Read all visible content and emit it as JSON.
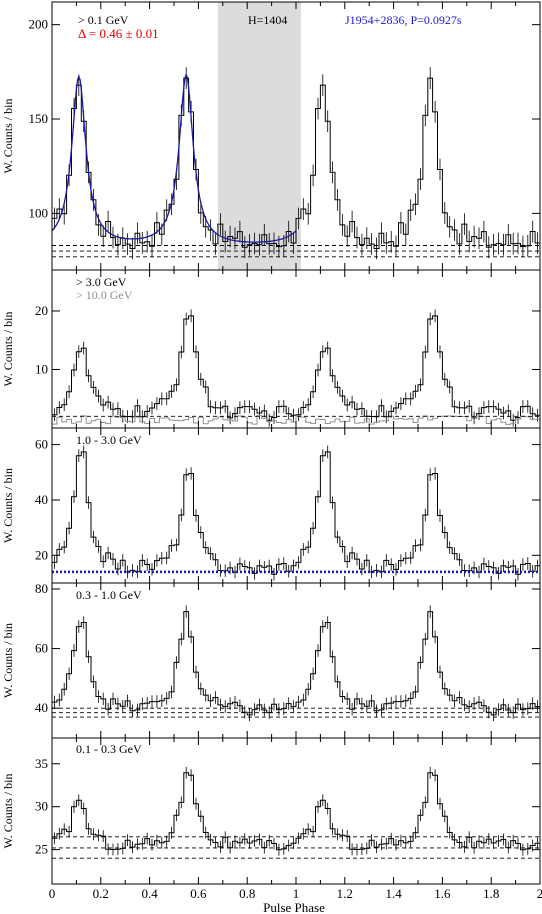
{
  "figure": {
    "xlabel": "Pulse Phase",
    "ylabel": "W. Counts / bin",
    "x_ticks": [
      "0",
      "0.2",
      "0.4",
      "0.6",
      "0.8",
      "1",
      "1.2",
      "1.4",
      "1.6",
      "1.8",
      "2"
    ],
    "x_range": [
      0,
      2
    ],
    "colors": {
      "histogram": "#000000",
      "fit": "#1a1aa0",
      "blue_text": "#1a1acc",
      "red_text": "#e00000",
      "offpulse": "#dcdcdc",
      "gray_text": "#909090"
    }
  },
  "annotations": {
    "energy_top": "> 0.1 GeV",
    "delta": "Δ = 0.46 ± 0.01",
    "htest": "H=1404",
    "pulsar": "J1954+2836, P=0.0927s",
    "energy_hi1": "> 3.0 GeV",
    "energy_hi2": "> 10.0 GeV",
    "energy_mid": "1.0 - 3.0 GeV",
    "energy_low": "0.3 - 1.0 GeV",
    "energy_lowest": "0.1 - 0.3 GeV"
  },
  "chart_data": [
    {
      "type": "line",
      "label": "> 0.1 GeV",
      "ylabel": "W. Counts / bin",
      "ylim": [
        70,
        212
      ],
      "y_ticks": [
        100,
        150,
        200
      ],
      "offpulse_region": [
        0.68,
        1.02
      ],
      "peaks": [
        {
          "phase": 0.11,
          "counts": 172
        },
        {
          "phase": 0.55,
          "counts": 173
        }
      ],
      "baseline_lines": [
        77,
        80,
        83
      ],
      "fit_curve": "double-peak Lorentzian over phase 0-1",
      "background_level": 82
    },
    {
      "type": "line",
      "label": "> 3.0 GeV",
      "ylabel": "W. Counts / bin",
      "ylim": [
        0,
        27
      ],
      "y_ticks": [
        10,
        20
      ],
      "peaks": [
        {
          "phase": 0.12,
          "counts": 14
        },
        {
          "phase": 0.56,
          "counts": 21
        }
      ],
      "baseline_lines": [
        2
      ],
      "secondary_series": "> 10.0 GeV"
    },
    {
      "type": "line",
      "label": "1.0 - 3.0 GeV",
      "ylabel": "W. Counts / bin",
      "ylim": [
        10,
        66
      ],
      "y_ticks": [
        20,
        40,
        60
      ],
      "peaks": [
        {
          "phase": 0.12,
          "counts": 58
        },
        {
          "phase": 0.56,
          "counts": 50
        }
      ],
      "baseline_lines": [
        14
      ]
    },
    {
      "type": "line",
      "label": "0.3 - 1.0 GeV",
      "ylabel": "W. Counts / bin",
      "ylim": [
        30,
        82
      ],
      "y_ticks": [
        40,
        60,
        80
      ],
      "peaks": [
        {
          "phase": 0.12,
          "counts": 72
        },
        {
          "phase": 0.55,
          "counts": 72
        }
      ],
      "baseline_lines": [
        37,
        38.5,
        40
      ]
    },
    {
      "type": "line",
      "label": "0.1 - 0.3 GeV",
      "ylabel": "W. Counts / bin",
      "ylim": [
        21,
        38
      ],
      "y_ticks": [
        25,
        30,
        35
      ],
      "peaks": [
        {
          "phase": 0.11,
          "counts": 31
        },
        {
          "phase": 0.56,
          "counts": 35
        }
      ],
      "baseline_lines": [
        24,
        25.2,
        26.5
      ]
    }
  ]
}
